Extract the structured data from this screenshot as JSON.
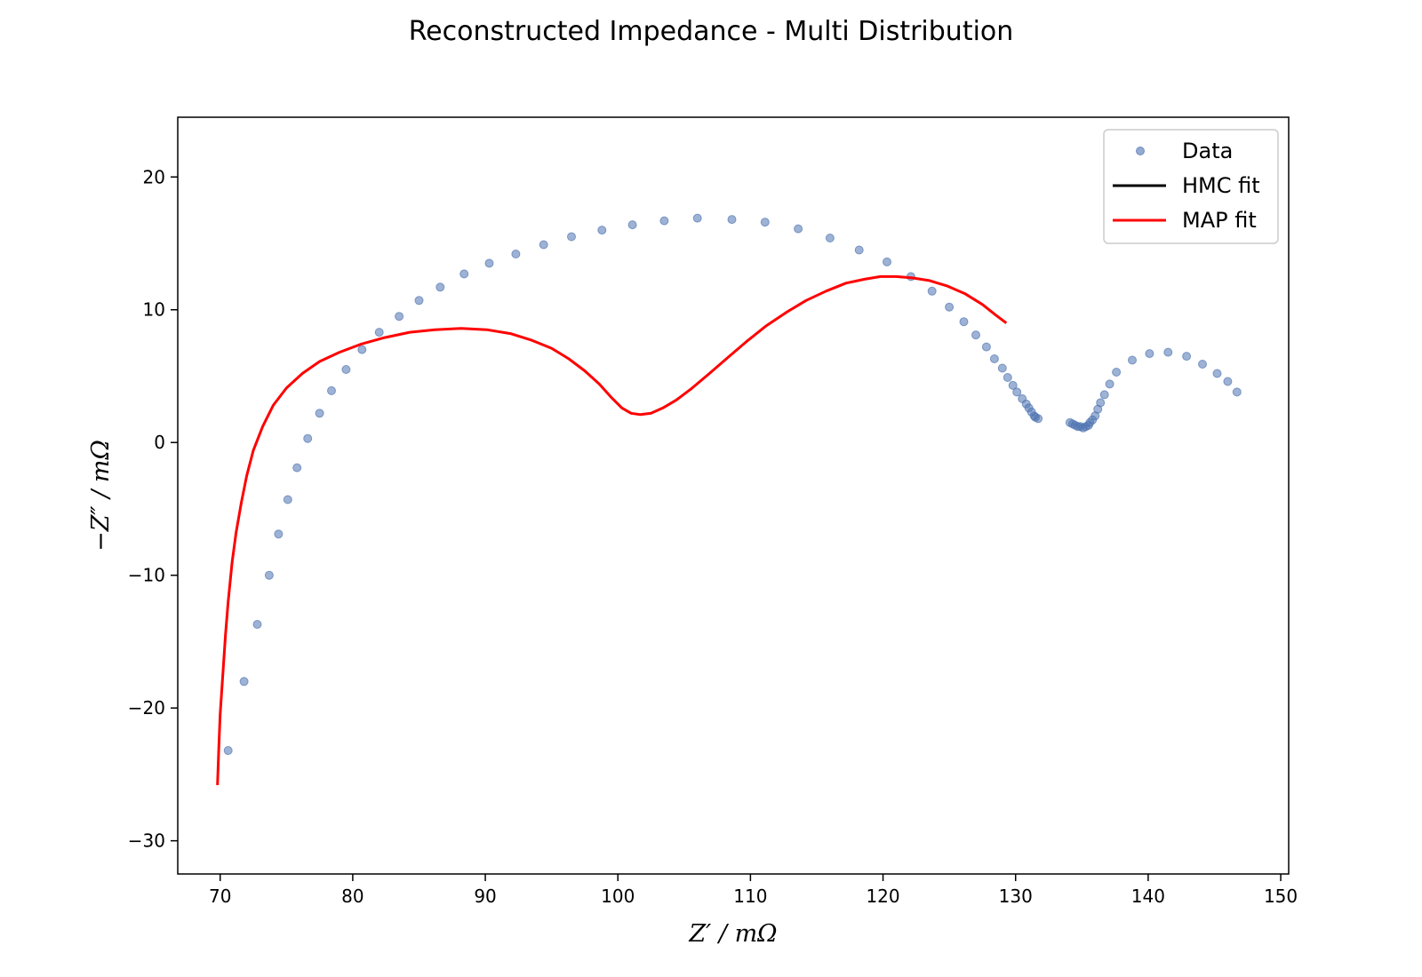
{
  "chart_data": {
    "type": "scatter",
    "title": "Reconstructed Impedance - Multi Distribution",
    "xlabel": "Z′ / mΩ",
    "ylabel": "−Z″ / mΩ",
    "xlim": [
      66.8,
      150.6
    ],
    "ylim": [
      -32.5,
      24.5
    ],
    "xticks": [
      70,
      80,
      90,
      100,
      110,
      120,
      130,
      140,
      150
    ],
    "yticks": [
      -30,
      -20,
      -10,
      0,
      10,
      20
    ],
    "grid": false,
    "legend_position": "top-right",
    "series": [
      {
        "name": "Data",
        "kind": "scatter",
        "color": "#4c72b0",
        "points": [
          [
            70.6,
            -23.2
          ],
          [
            71.8,
            -18.0
          ],
          [
            72.8,
            -13.7
          ],
          [
            73.7,
            -10.0
          ],
          [
            74.4,
            -6.9
          ],
          [
            75.1,
            -4.3
          ],
          [
            75.8,
            -1.9
          ],
          [
            76.6,
            0.3
          ],
          [
            77.5,
            2.2
          ],
          [
            78.4,
            3.9
          ],
          [
            79.5,
            5.5
          ],
          [
            80.7,
            7.0
          ],
          [
            82.0,
            8.3
          ],
          [
            83.5,
            9.5
          ],
          [
            85.0,
            10.7
          ],
          [
            86.6,
            11.7
          ],
          [
            88.4,
            12.7
          ],
          [
            90.3,
            13.5
          ],
          [
            92.3,
            14.2
          ],
          [
            94.4,
            14.9
          ],
          [
            96.5,
            15.5
          ],
          [
            98.8,
            16.0
          ],
          [
            101.1,
            16.4
          ],
          [
            103.5,
            16.7
          ],
          [
            106.0,
            16.9
          ],
          [
            108.6,
            16.8
          ],
          [
            111.1,
            16.6
          ],
          [
            113.6,
            16.1
          ],
          [
            116.0,
            15.4
          ],
          [
            118.2,
            14.5
          ],
          [
            120.3,
            13.6
          ],
          [
            122.1,
            12.5
          ],
          [
            123.7,
            11.4
          ],
          [
            125.0,
            10.2
          ],
          [
            126.1,
            9.1
          ],
          [
            127.0,
            8.1
          ],
          [
            127.8,
            7.2
          ],
          [
            128.4,
            6.3
          ],
          [
            129.0,
            5.6
          ],
          [
            129.4,
            4.9
          ],
          [
            129.8,
            4.3
          ],
          [
            130.1,
            3.8
          ],
          [
            130.5,
            3.3
          ],
          [
            130.8,
            2.9
          ],
          [
            131.0,
            2.6
          ],
          [
            131.2,
            2.3
          ],
          [
            131.4,
            2.0
          ],
          [
            131.5,
            1.9
          ],
          [
            131.7,
            1.8
          ],
          [
            134.1,
            1.5
          ],
          [
            134.3,
            1.4
          ],
          [
            134.5,
            1.3
          ],
          [
            134.7,
            1.2
          ],
          [
            134.9,
            1.2
          ],
          [
            135.1,
            1.1
          ],
          [
            135.3,
            1.2
          ],
          [
            135.5,
            1.3
          ],
          [
            135.6,
            1.5
          ],
          [
            135.8,
            1.7
          ],
          [
            136.0,
            2.0
          ],
          [
            136.2,
            2.5
          ],
          [
            136.4,
            3.0
          ],
          [
            136.7,
            3.6
          ],
          [
            137.1,
            4.4
          ],
          [
            137.6,
            5.3
          ],
          [
            138.8,
            6.2
          ],
          [
            140.1,
            6.7
          ],
          [
            141.5,
            6.8
          ],
          [
            142.9,
            6.5
          ],
          [
            144.1,
            5.9
          ],
          [
            145.2,
            5.2
          ],
          [
            146.0,
            4.6
          ],
          [
            146.7,
            3.8
          ]
        ]
      },
      {
        "name": "HMC fit",
        "kind": "line",
        "color": "#000000",
        "points": []
      },
      {
        "name": "MAP fit",
        "kind": "line",
        "color": "#ff0000",
        "points": [
          [
            69.8,
            -25.8
          ],
          [
            69.9,
            -23.0
          ],
          [
            70.0,
            -20.5
          ],
          [
            70.2,
            -17.5
          ],
          [
            70.4,
            -14.5
          ],
          [
            70.6,
            -12.0
          ],
          [
            70.9,
            -9.0
          ],
          [
            71.2,
            -6.8
          ],
          [
            71.6,
            -4.5
          ],
          [
            72.0,
            -2.5
          ],
          [
            72.5,
            -0.6
          ],
          [
            73.2,
            1.2
          ],
          [
            74.0,
            2.8
          ],
          [
            75.0,
            4.1
          ],
          [
            76.2,
            5.2
          ],
          [
            77.5,
            6.1
          ],
          [
            79.0,
            6.8
          ],
          [
            80.6,
            7.4
          ],
          [
            82.4,
            7.9
          ],
          [
            84.3,
            8.3
          ],
          [
            86.2,
            8.5
          ],
          [
            88.2,
            8.6
          ],
          [
            90.1,
            8.5
          ],
          [
            91.9,
            8.2
          ],
          [
            93.5,
            7.7
          ],
          [
            95.0,
            7.1
          ],
          [
            96.3,
            6.3
          ],
          [
            97.5,
            5.4
          ],
          [
            98.6,
            4.4
          ],
          [
            99.5,
            3.4
          ],
          [
            100.3,
            2.6
          ],
          [
            101.0,
            2.2
          ],
          [
            101.7,
            2.1
          ],
          [
            102.5,
            2.2
          ],
          [
            103.4,
            2.6
          ],
          [
            104.4,
            3.2
          ],
          [
            105.6,
            4.1
          ],
          [
            106.9,
            5.2
          ],
          [
            108.3,
            6.4
          ],
          [
            109.7,
            7.6
          ],
          [
            111.2,
            8.8
          ],
          [
            112.7,
            9.8
          ],
          [
            114.2,
            10.7
          ],
          [
            115.7,
            11.4
          ],
          [
            117.2,
            12.0
          ],
          [
            118.6,
            12.3
          ],
          [
            119.8,
            12.5
          ],
          [
            121.0,
            12.5
          ],
          [
            122.2,
            12.4
          ],
          [
            123.5,
            12.2
          ],
          [
            124.8,
            11.8
          ],
          [
            126.2,
            11.2
          ],
          [
            127.5,
            10.4
          ],
          [
            128.5,
            9.6
          ],
          [
            129.3,
            9.0
          ]
        ]
      }
    ]
  }
}
